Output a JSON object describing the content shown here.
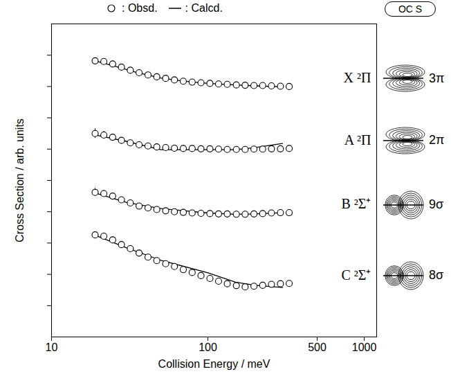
{
  "chart_data": {
    "type": "line",
    "xlabel": "Collision Energy / meV",
    "ylabel": "Cross Section / arb. units",
    "log": "x",
    "xlim": [
      10,
      1200
    ],
    "xticks": [
      10,
      100,
      500,
      1000
    ],
    "ylim": [
      0,
      10
    ],
    "yticks": [
      1,
      2,
      3,
      4,
      5,
      6,
      7,
      8,
      9
    ],
    "tick_labels": "x",
    "grid": false,
    "legend": "top",
    "legend_entries": [
      {
        "name": ": Obsd.",
        "marker": "circle"
      },
      {
        "name": ": Calcd.",
        "line_style": "solid"
      }
    ],
    "molecule": "OC S",
    "color": "#000000",
    "x": [
      19,
      21.6,
      24.6,
      28,
      31.9,
      36.3,
      41.4,
      47.1,
      53.7,
      61.1,
      69.6,
      79.3,
      90.3,
      103,
      117,
      133,
      152,
      173,
      197,
      224,
      255,
      291,
      331
    ],
    "series": [
      {
        "name": "X ²Π",
        "orbital": "3π",
        "values": [
          8.82,
          8.8,
          8.72,
          8.62,
          8.52,
          8.44,
          8.37,
          8.31,
          8.26,
          8.21,
          8.17,
          8.14,
          8.12,
          8.1,
          8.08,
          8.07,
          8.05,
          8.04,
          8.03,
          8.03,
          8.02,
          8.01,
          8.0
        ],
        "calculated": {
          "x": [
            19,
            25,
            35,
            50,
            70,
            100,
            150,
            200,
            300
          ],
          "values": [
            8.82,
            8.66,
            8.45,
            8.27,
            8.17,
            8.1,
            8.05,
            8.02,
            7.99
          ]
        }
      },
      {
        "name": "A ²Π",
        "orbital": "2π",
        "values": [
          6.5,
          6.45,
          6.38,
          6.28,
          6.2,
          6.14,
          6.1,
          6.07,
          6.05,
          6.03,
          6.02,
          6.02,
          6.01,
          6.01,
          6.0,
          5.99,
          5.99,
          5.99,
          6.0,
          6.0,
          6.01,
          6.01,
          6.02
        ],
        "errors": [
          0.15,
          0.12,
          null,
          null,
          null,
          null,
          null,
          null,
          null,
          0.07,
          0.07,
          0.07,
          0.07,
          0.07,
          0.07,
          0.07,
          0.07,
          null,
          null,
          null,
          null,
          null,
          null
        ],
        "calculated": {
          "x": [
            19,
            30,
            50,
            100,
            150,
            200,
            300
          ],
          "values": [
            6.45,
            6.25,
            5.98,
            5.98,
            5.98,
            6.05,
            6.18
          ]
        }
      },
      {
        "name": "B ²Σ⁺",
        "orbital": "9σ",
        "values": [
          4.62,
          4.58,
          4.5,
          4.38,
          4.28,
          4.18,
          4.12,
          4.07,
          4.03,
          4.0,
          3.98,
          3.96,
          3.95,
          3.94,
          3.93,
          3.93,
          3.92,
          3.92,
          3.93,
          3.94,
          3.96,
          3.97,
          3.97
        ],
        "errors": [
          0.13,
          0.1,
          null,
          null,
          null,
          null,
          null,
          null,
          null,
          null,
          null,
          null,
          null,
          null,
          null,
          null,
          null,
          null,
          null,
          null,
          null,
          null,
          null
        ],
        "calculated": {
          "x": [
            19,
            30,
            50,
            100,
            150,
            200,
            300
          ],
          "values": [
            4.6,
            4.3,
            4.1,
            3.96,
            3.92,
            3.93,
            3.97
          ]
        }
      },
      {
        "name": "C ²Σ⁺",
        "orbital": "8σ",
        "values": [
          3.26,
          3.22,
          3.1,
          2.95,
          2.82,
          2.68,
          2.55,
          2.44,
          2.34,
          2.25,
          2.15,
          2.06,
          1.96,
          1.87,
          1.78,
          1.7,
          1.64,
          1.6,
          1.62,
          1.65,
          1.68,
          1.7,
          1.71
        ],
        "calculated": {
          "x": [
            19,
            30,
            50,
            100,
            150,
            200,
            300
          ],
          "values": [
            3.25,
            2.85,
            2.45,
            2.05,
            1.75,
            1.65,
            1.58
          ]
        }
      }
    ]
  }
}
